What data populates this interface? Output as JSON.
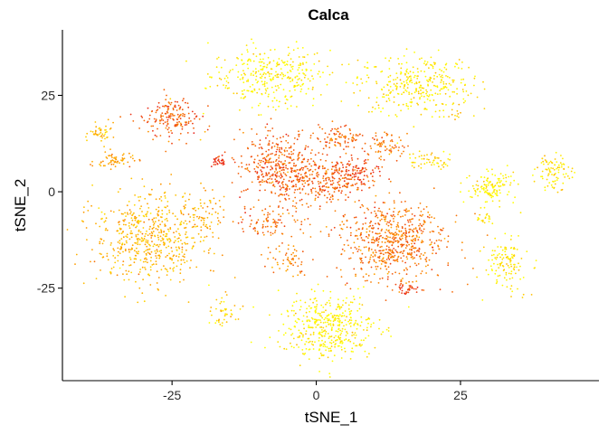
{
  "chart_data": {
    "type": "scatter",
    "title": "Calca",
    "xlabel": "tSNE_1",
    "ylabel": "tSNE_2",
    "xlim": [
      -44,
      49
    ],
    "ylim": [
      -49,
      42
    ],
    "x_ticks": [
      -25,
      0,
      25
    ],
    "y_ticks": [
      25,
      0,
      -25
    ],
    "x_tick_labels": [
      "-25",
      "0",
      "25"
    ],
    "y_tick_labels": [
      "25",
      "0",
      "-25"
    ],
    "grid": false,
    "legend": "none",
    "color_scale": {
      "low": "#ffff00",
      "mid": "#ff9900",
      "high": "#e8231a"
    },
    "clusters": [
      {
        "cx": -8,
        "cy": 30,
        "sx": 6,
        "sy": 4.5,
        "n": 320,
        "level": 0.05
      },
      {
        "cx": 17,
        "cy": 28,
        "sx": 6,
        "sy": 4.5,
        "n": 330,
        "level": 0.08
      },
      {
        "cx": -25,
        "cy": 19,
        "sx": 2.8,
        "sy": 3.2,
        "n": 170,
        "level": 0.75
      },
      {
        "cx": -37,
        "cy": 15,
        "sx": 1.3,
        "sy": 1.5,
        "n": 45,
        "level": 0.3
      },
      {
        "cx": -35,
        "cy": 8,
        "sx": 2,
        "sy": 1.2,
        "n": 60,
        "level": 0.45
      },
      {
        "cx": 4,
        "cy": 14,
        "sx": 2.5,
        "sy": 1.8,
        "n": 90,
        "level": 0.7
      },
      {
        "cx": 12,
        "cy": 12,
        "sx": 2.2,
        "sy": 1.8,
        "n": 70,
        "level": 0.6
      },
      {
        "cx": 20,
        "cy": 8,
        "sx": 2.5,
        "sy": 1.5,
        "n": 50,
        "level": 0.2
      },
      {
        "cx": -17,
        "cy": 8,
        "sx": 1.2,
        "sy": 1,
        "n": 30,
        "level": 0.95
      },
      {
        "cx": -7,
        "cy": 7,
        "sx": 3.5,
        "sy": 5,
        "n": 300,
        "level": 0.75
      },
      {
        "cx": 0,
        "cy": 3,
        "sx": 5,
        "sy": 4,
        "n": 330,
        "level": 0.72
      },
      {
        "cx": 7,
        "cy": 5,
        "sx": 3,
        "sy": 2,
        "n": 110,
        "level": 0.85
      },
      {
        "cx": -29,
        "cy": -12,
        "sx": 5.5,
        "sy": 7,
        "n": 560,
        "level": 0.35
      },
      {
        "cx": -19,
        "cy": -6,
        "sx": 2,
        "sy": 3,
        "n": 60,
        "level": 0.4
      },
      {
        "cx": -8,
        "cy": -8,
        "sx": 3.5,
        "sy": 2.5,
        "n": 90,
        "level": 0.7
      },
      {
        "cx": -5,
        "cy": -17,
        "sx": 2.2,
        "sy": 2.5,
        "n": 55,
        "level": 0.55
      },
      {
        "cx": 13,
        "cy": -13,
        "sx": 5.5,
        "sy": 6,
        "n": 620,
        "level": 0.65
      },
      {
        "cx": 16,
        "cy": -25,
        "sx": 1.3,
        "sy": 0.8,
        "n": 35,
        "level": 0.85
      },
      {
        "cx": 2,
        "cy": -35,
        "sx": 5,
        "sy": 5,
        "n": 420,
        "level": 0.05
      },
      {
        "cx": -16,
        "cy": -31,
        "sx": 1.3,
        "sy": 2.5,
        "n": 45,
        "level": 0.2
      },
      {
        "cx": 30,
        "cy": 1,
        "sx": 2.5,
        "sy": 2.5,
        "n": 130,
        "level": 0.05
      },
      {
        "cx": 29,
        "cy": -7,
        "sx": 1,
        "sy": 0.8,
        "n": 20,
        "level": 0.1
      },
      {
        "cx": 33,
        "cy": -19,
        "sx": 2.2,
        "sy": 4,
        "n": 120,
        "level": 0.12
      },
      {
        "cx": 41,
        "cy": 5,
        "sx": 1.8,
        "sy": 2.5,
        "n": 90,
        "level": 0.12
      },
      {
        "cx": 24,
        "cy": 21,
        "sx": 0.6,
        "sy": 1.5,
        "n": 12,
        "level": 0.3
      }
    ]
  }
}
